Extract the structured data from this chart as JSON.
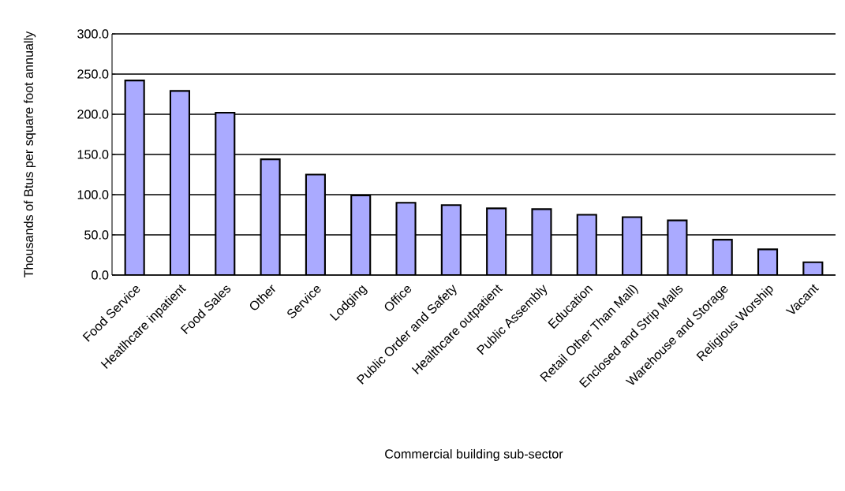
{
  "chart_data": {
    "type": "bar",
    "xlabel": "Commercial building sub-sector",
    "ylabel": "Thousands of Btus per square foot annually",
    "categories": [
      "Food Service",
      "Heatlhcare inpatient",
      "Food Sales",
      "Other",
      "Service",
      "Lodging",
      "Office",
      "Public Order and Safety",
      "Healthcare outpatient",
      "Public Assembly",
      "Education",
      "Retail Other Than Mall)",
      "Enclosed and Strip Malls",
      "Warehouse and Storage",
      "Religious Worship",
      "Vacant"
    ],
    "values": [
      242,
      229,
      202,
      144,
      125,
      99,
      90,
      87,
      83,
      82,
      75,
      72,
      68,
      44,
      32,
      16
    ],
    "color": "#aaaaff",
    "ylim": [
      0,
      300
    ],
    "yticks": [
      {
        "value": 0,
        "label": "0.0"
      },
      {
        "value": 50,
        "label": "50.0"
      },
      {
        "value": 100,
        "label": "100.0"
      },
      {
        "value": 150,
        "label": "150.0"
      },
      {
        "value": 200,
        "label": "200.0"
      },
      {
        "value": 250,
        "label": "250.0"
      },
      {
        "value": 300,
        "label": "300.0"
      }
    ],
    "grid": "y"
  }
}
